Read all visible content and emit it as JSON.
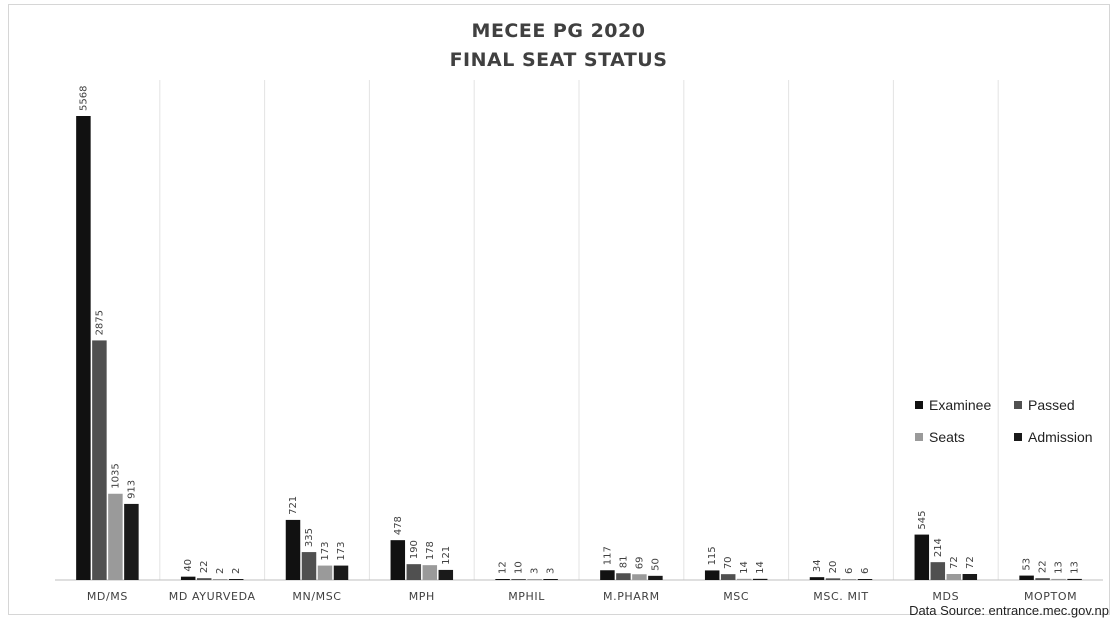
{
  "title_line1": "MECEE PG 2020",
  "title_line2": "FINAL SEAT STATUS",
  "source": "Data Source: entrance.mec.gov.np",
  "chart_data": {
    "type": "bar",
    "title": "MECEE PG 2020 FINAL SEAT STATUS",
    "categories": [
      "MD/MS",
      "MD AYURVEDA",
      "MN/MSC",
      "MPH",
      "MPHIL",
      "M.PHARM",
      "MSC",
      "MSC. MIT",
      "MDS",
      "MOPTOM"
    ],
    "series": [
      {
        "name": "Examinee",
        "color": "#111111",
        "values": [
          5568,
          40,
          721,
          478,
          12,
          117,
          115,
          34,
          545,
          53
        ]
      },
      {
        "name": "Passed",
        "color": "#505050",
        "values": [
          2875,
          22,
          335,
          190,
          10,
          81,
          70,
          20,
          214,
          22
        ]
      },
      {
        "name": "Seats",
        "color": "#9a9a9a",
        "values": [
          1035,
          2,
          173,
          178,
          3,
          69,
          14,
          6,
          72,
          13
        ]
      },
      {
        "name": "Admission",
        "color": "#1a1a1a",
        "values": [
          913,
          2,
          173,
          121,
          3,
          50,
          14,
          6,
          72,
          13
        ]
      }
    ],
    "ylim": [
      0,
      5568
    ],
    "grid": "vertical separators",
    "legend": "right"
  }
}
